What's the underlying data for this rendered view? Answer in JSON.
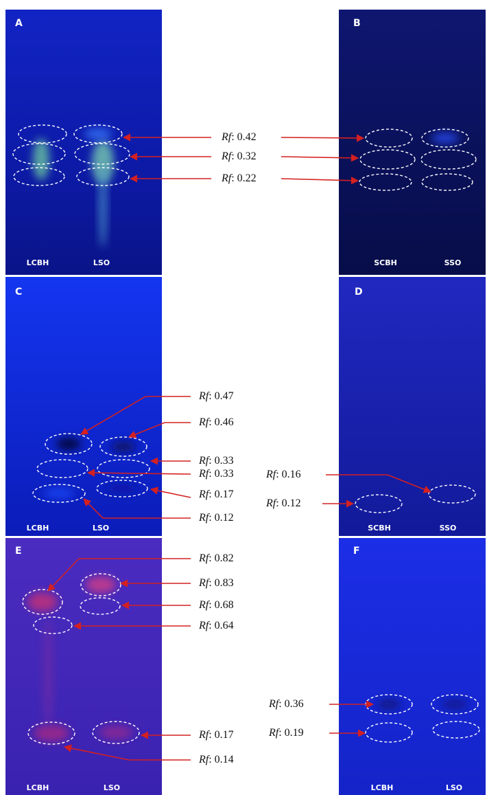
{
  "separator": ":",
  "panels": [
    {
      "letter": "A",
      "lanes": [
        "LCBH",
        "LSO"
      ],
      "annotations": [
        {
          "symbol": "Rf",
          "value": 0.42
        },
        {
          "symbol": "Rf",
          "value": 0.32
        },
        {
          "symbol": "Rf",
          "value": 0.22
        }
      ]
    },
    {
      "letter": "B",
      "lanes": [
        "SCBH",
        "SSO"
      ]
    },
    {
      "letter": "C",
      "lanes": [
        "LCBH",
        "LSO"
      ],
      "annotations": [
        {
          "symbol": "Rf",
          "value": 0.47
        },
        {
          "symbol": "Rf",
          "value": 0.46
        },
        {
          "symbol": "Rf",
          "value": 0.33
        },
        {
          "symbol": "Rf",
          "value": 0.33
        },
        {
          "symbol": "Rf",
          "value": 0.17
        },
        {
          "symbol": "Rf",
          "value": 0.12
        }
      ]
    },
    {
      "letter": "D",
      "lanes": [
        "SCBH",
        "SSO"
      ],
      "annotations": [
        {
          "symbol": "Rf",
          "value": 0.16
        },
        {
          "symbol": "Rf",
          "value": 0.12
        }
      ]
    },
    {
      "letter": "E",
      "lanes": [
        "LCBH",
        "LSO"
      ],
      "annotations": [
        {
          "symbol": "Rf",
          "value": 0.82
        },
        {
          "symbol": "Rf",
          "value": 0.83
        },
        {
          "symbol": "Rf",
          "value": 0.68
        },
        {
          "symbol": "Rf",
          "value": 0.64
        },
        {
          "symbol": "Rf",
          "value": 0.17
        },
        {
          "symbol": "Rf",
          "value": 0.14
        }
      ]
    },
    {
      "letter": "F",
      "lanes": [
        "LCBH",
        "LSO"
      ],
      "annotations": [
        {
          "symbol": "Rf",
          "value": 0.36
        },
        {
          "symbol": "Rf",
          "value": 0.19
        }
      ]
    }
  ]
}
